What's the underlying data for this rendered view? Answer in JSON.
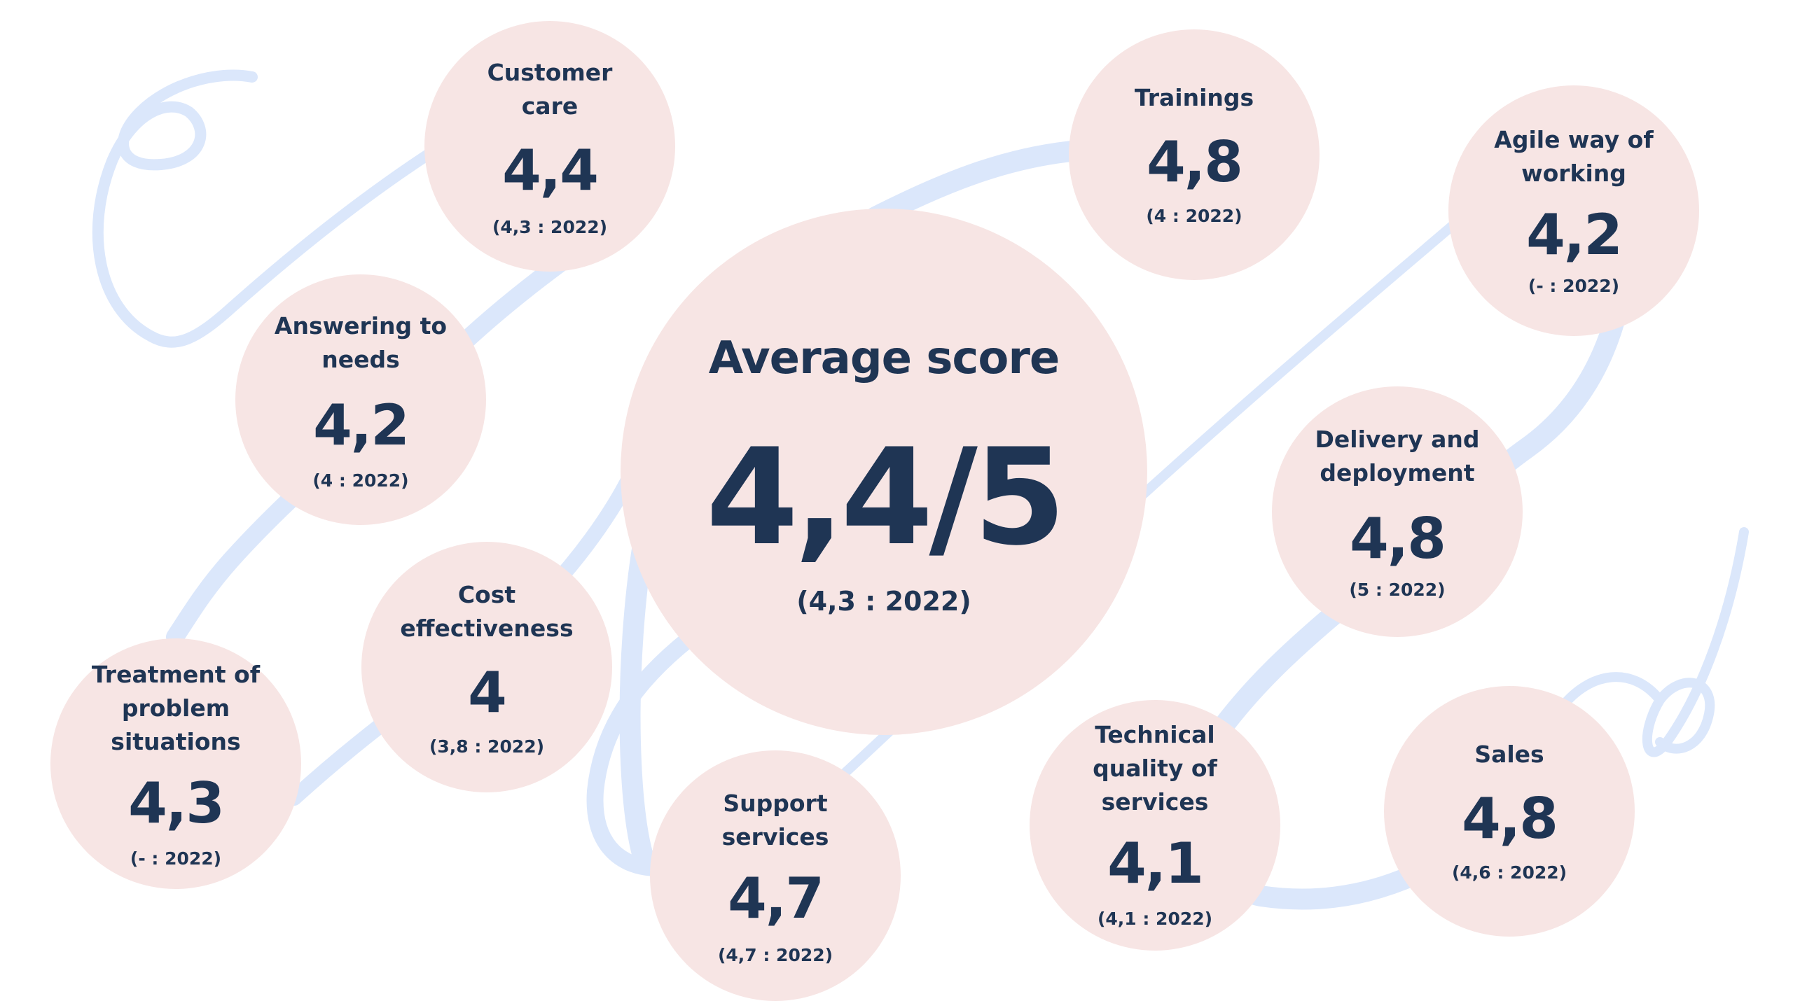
{
  "colors": {
    "bubble": "#f7e5e4",
    "text": "#1f3554",
    "ribbon": "#dbe7fb"
  },
  "main": {
    "label": "Average score",
    "score": "4,4/5",
    "previous": "(4,3 : 2022)"
  },
  "categories": [
    {
      "label": "Customer care",
      "score": "4,4",
      "previous": "(4,3 : 2022)"
    },
    {
      "label": "Trainings",
      "score": "4,8",
      "previous": "(4 : 2022)"
    },
    {
      "label": "Agile way of working",
      "score": "4,2",
      "previous": "(- : 2022)"
    },
    {
      "label": "Answering to needs",
      "score": "4,2",
      "previous": "(4 : 2022)"
    },
    {
      "label": "Delivery and deployment",
      "score": "4,8",
      "previous": "(5 : 2022)"
    },
    {
      "label": "Cost effectiveness",
      "score": "4",
      "previous": "(3,8 : 2022)"
    },
    {
      "label": "Treatment of problem situations",
      "score": "4,3",
      "previous": "(- : 2022)"
    },
    {
      "label": "Support services",
      "score": "4,7",
      "previous": "(4,7 : 2022)"
    },
    {
      "label": "Technical quality of services",
      "score": "4,1",
      "previous": "(4,1 : 2022)"
    },
    {
      "label": "Sales",
      "score": "4,8",
      "previous": "(4,6 : 2022)"
    }
  ]
}
